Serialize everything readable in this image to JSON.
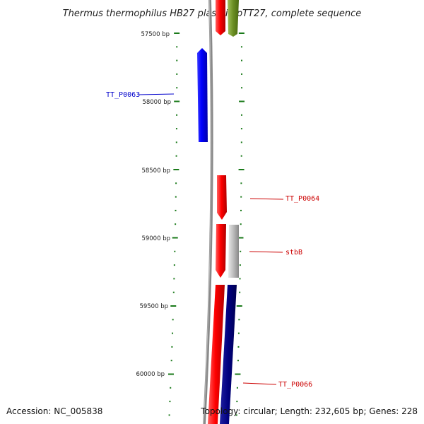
{
  "title": "Thermus thermophilus HB27 plasmid pTT27, complete sequence",
  "accession": "Accession: NC_005838",
  "topology": "Topology: circular; Length: 232,605 bp; Genes: 228",
  "positions": [
    "57500 bp",
    "58000 bp",
    "58500 bp",
    "59000 bp",
    "59500 bp",
    "60000 bp"
  ],
  "genes": [
    {
      "name": "TT_P0063",
      "color": "#0000cc"
    },
    {
      "name": "TT_P0064",
      "color": "#cc0000"
    },
    {
      "name": "stbB",
      "color": "#cc0000"
    },
    {
      "name": "TT_P0066",
      "color": "#cc0000"
    }
  ],
  "colors": {
    "tick": "#1a7a1a",
    "backbone": "#888888",
    "blue_gene": "#0000ff",
    "red_gene": "#ff0000",
    "grey_gene": "#bbbbbb",
    "navy_gene": "#000080",
    "olive_gene": "#6b8e23"
  }
}
